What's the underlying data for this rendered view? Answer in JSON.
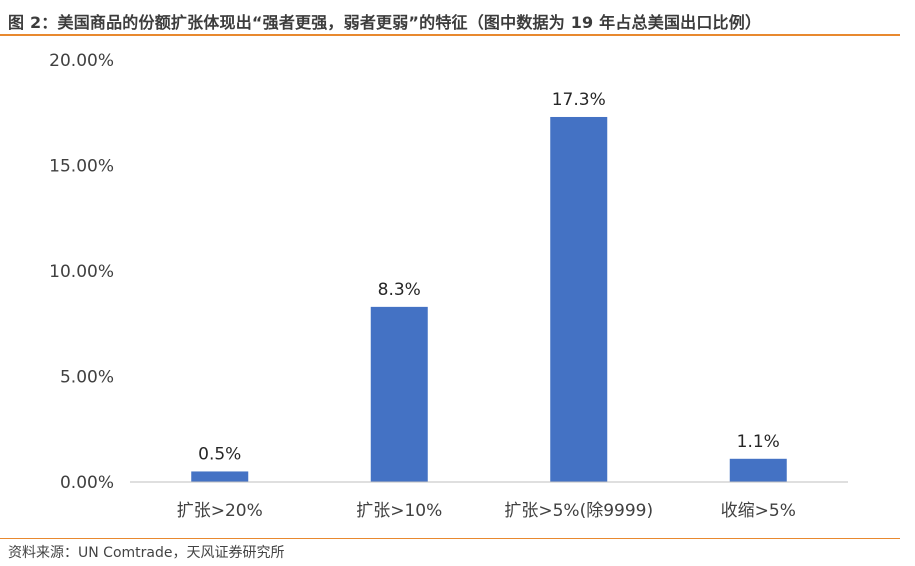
{
  "header": {
    "title": "图 2：美国商品的份额扩张体现出“强者更强，弱者更弱”的特征（图中数据为 19 年占总美国出口比例）"
  },
  "footer": {
    "source": "资料来源：UN Comtrade，天风证券研究所"
  },
  "colors": {
    "bar": "#4472c4",
    "accent_rule": "#e8892f",
    "axis": "#bfbfbf"
  },
  "chart_data": {
    "type": "bar",
    "categories": [
      "扩张>20%",
      "扩张>10%",
      "扩张>5%(除9999)",
      "收缩>5%"
    ],
    "values": [
      0.5,
      8.3,
      17.3,
      1.1
    ],
    "data_labels": [
      "0.5%",
      "8.3%",
      "17.3%",
      "1.1%"
    ],
    "y_ticks": [
      0,
      5,
      10,
      15,
      20
    ],
    "y_tick_labels": [
      "0.00%",
      "5.00%",
      "10.00%",
      "15.00%",
      "20.00%"
    ],
    "ylim": [
      0,
      20
    ],
    "grid": false,
    "legend": "none"
  }
}
